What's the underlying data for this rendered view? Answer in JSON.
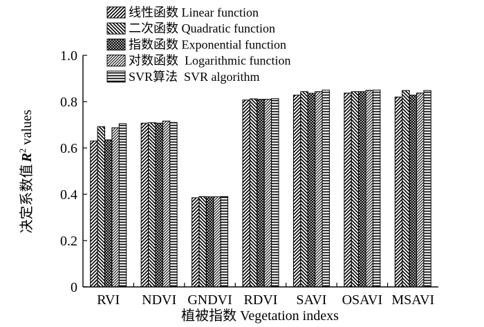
{
  "chart_data": {
    "type": "bar",
    "title": "",
    "xlabel": "植被指数 Vegetation indexs",
    "ylabel_cn": "决定系数值",
    "ylabel_r": "R",
    "ylabel_sup": "2",
    "ylabel_rest": "values",
    "ylim": [
      0,
      1.0
    ],
    "yticks": [
      "0",
      "0.2",
      "0.4",
      "0.6",
      "0.8",
      "1.0"
    ],
    "ytick_values": [
      0,
      0.2,
      0.4,
      0.6,
      0.8,
      1.0
    ],
    "grid": false,
    "legend_position": "top",
    "categories": [
      "RVI",
      "NDVI",
      "GNDVI",
      "RDVI",
      "SAVI",
      "OSAVI",
      "MSAVI"
    ],
    "series": [
      {
        "name": "线性函数 Linear function",
        "pattern": "diag-right",
        "values": [
          0.63,
          0.707,
          0.385,
          0.807,
          0.828,
          0.837,
          0.82
        ]
      },
      {
        "name": "二次函数 Quadratic function",
        "pattern": "diag-left",
        "values": [
          0.692,
          0.709,
          0.39,
          0.812,
          0.843,
          0.843,
          0.848
        ]
      },
      {
        "name": "指数函数 Exponential function",
        "pattern": "crosshatch",
        "values": [
          0.635,
          0.707,
          0.389,
          0.81,
          0.836,
          0.843,
          0.828
        ]
      },
      {
        "name": "对数函数  Logarithmic function",
        "pattern": "diag-right-dense",
        "values": [
          0.687,
          0.716,
          0.389,
          0.81,
          0.843,
          0.849,
          0.837
        ]
      },
      {
        "name": "SVR算法  SVR algorithm",
        "pattern": "horizontal",
        "values": [
          0.705,
          0.71,
          0.39,
          0.813,
          0.85,
          0.85,
          0.848
        ]
      }
    ]
  }
}
